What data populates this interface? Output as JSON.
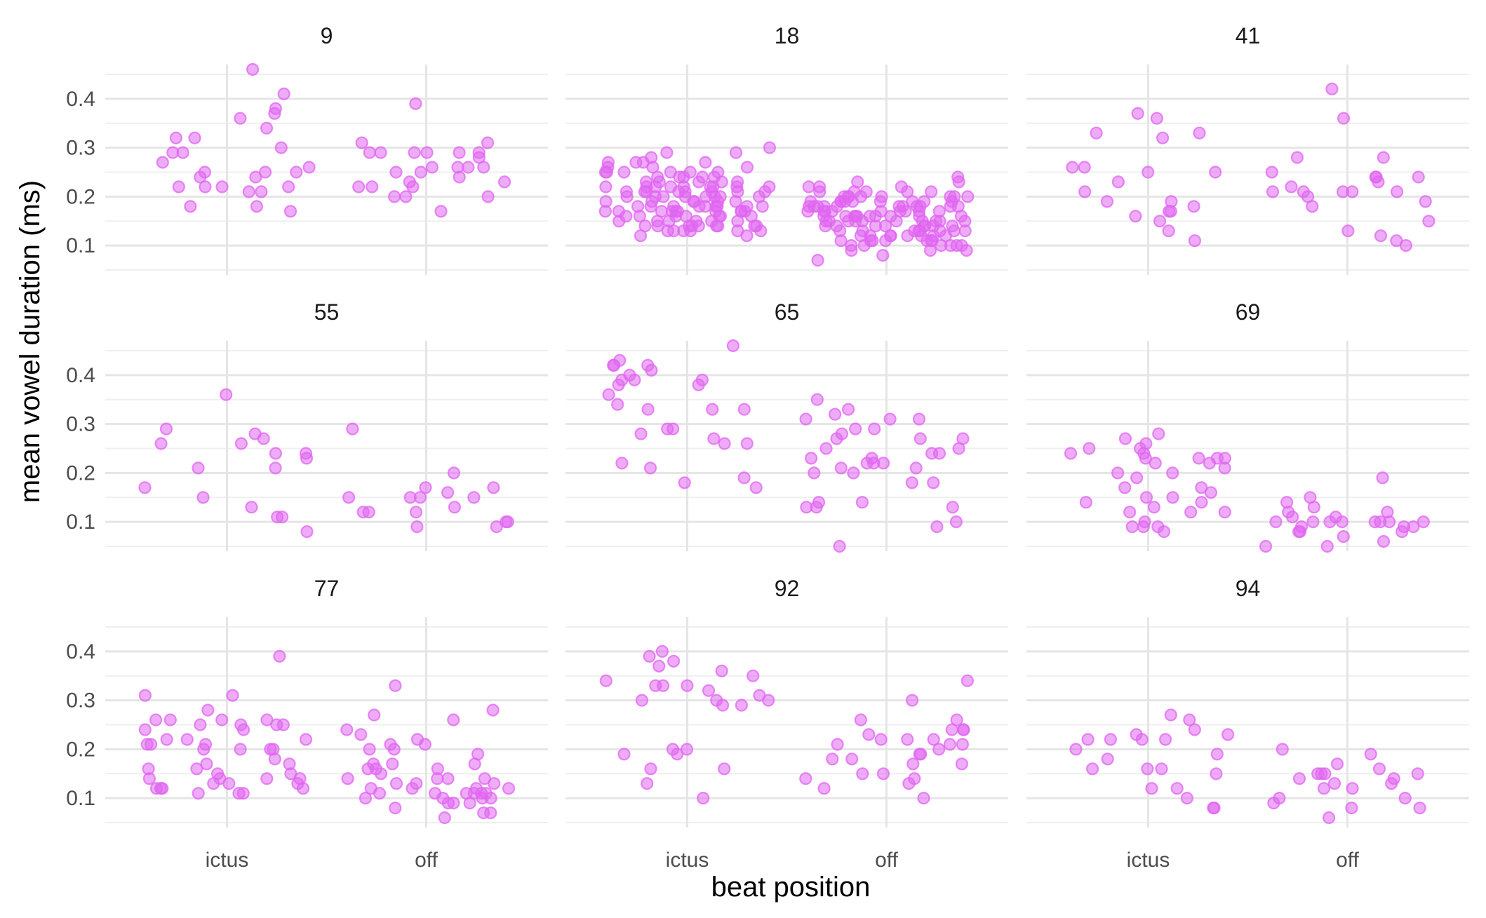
{
  "chart_data": {
    "type": "scatter",
    "facet_type": "facet_wrap",
    "xlabel": "beat position",
    "ylabel": "mean vowel duration (ms)",
    "x_categories": [
      "ictus",
      "off"
    ],
    "y_ticks": [
      0.1,
      0.2,
      0.3,
      0.4
    ],
    "ylim": [
      0.04,
      0.47
    ],
    "grid": true,
    "point_color": "#E066F0",
    "point_alpha": 0.55,
    "panels": [
      {
        "title": "9",
        "ictus": [
          0.46,
          0.32,
          0.21,
          0.26,
          0.18,
          0.24,
          0.29,
          0.17,
          0.21,
          0.3,
          0.34,
          0.24,
          0.38,
          0.32,
          0.36,
          0.29,
          0.22,
          0.37,
          0.22,
          0.41,
          0.27,
          0.22,
          0.25,
          0.25,
          0.18,
          0.22,
          0.25
        ],
        "off": [
          0.31,
          0.22,
          0.29,
          0.28,
          0.22,
          0.29,
          0.25,
          0.2,
          0.29,
          0.23,
          0.25,
          0.26,
          0.29,
          0.39,
          0.2,
          0.29,
          0.2,
          0.26,
          0.26,
          0.24,
          0.31,
          0.17,
          0.22,
          0.26,
          0.23,
          0.29
        ]
      },
      {
        "title": "18",
        "ictus": [
          0.21,
          0.13,
          0.22,
          0.13,
          0.13,
          0.17,
          0.27,
          0.23,
          0.21,
          0.2,
          0.17,
          0.19,
          0.18,
          0.18,
          0.12,
          0.23,
          0.22,
          0.19,
          0.17,
          0.2,
          0.2,
          0.26,
          0.15,
          0.21,
          0.14,
          0.24,
          0.26,
          0.21,
          0.18,
          0.18,
          0.13,
          0.14,
          0.27,
          0.25,
          0.22,
          0.21,
          0.25,
          0.15,
          0.14,
          0.28,
          0.19,
          0.22,
          0.16,
          0.27,
          0.14,
          0.18,
          0.26,
          0.18,
          0.16,
          0.17,
          0.2,
          0.15,
          0.21,
          0.24,
          0.13,
          0.22,
          0.18,
          0.27,
          0.21,
          0.17,
          0.16,
          0.19,
          0.14,
          0.23,
          0.17,
          0.29,
          0.3,
          0.24,
          0.12,
          0.2,
          0.25,
          0.22,
          0.14,
          0.15,
          0.25,
          0.17,
          0.2,
          0.22,
          0.14,
          0.18,
          0.16,
          0.23,
          0.16,
          0.14,
          0.17,
          0.24,
          0.19,
          0.2,
          0.29,
          0.14,
          0.23,
          0.25,
          0.19,
          0.21,
          0.16,
          0.25,
          0.17,
          0.22,
          0.15,
          0.13,
          0.24,
          0.2,
          0.16,
          0.17,
          0.22,
          0.18,
          0.15
        ],
        "off": [
          0.21,
          0.14,
          0.16,
          0.18,
          0.21,
          0.12,
          0.13,
          0.15,
          0.13,
          0.2,
          0.1,
          0.16,
          0.22,
          0.18,
          0.13,
          0.09,
          0.11,
          0.19,
          0.17,
          0.15,
          0.16,
          0.14,
          0.21,
          0.17,
          0.1,
          0.12,
          0.19,
          0.16,
          0.13,
          0.18,
          0.2,
          0.15,
          0.11,
          0.22,
          0.17,
          0.14,
          0.19,
          0.1,
          0.16,
          0.12,
          0.18,
          0.2,
          0.14,
          0.16,
          0.22,
          0.15,
          0.18,
          0.24,
          0.17,
          0.12,
          0.2,
          0.15,
          0.19,
          0.11,
          0.16,
          0.23,
          0.13,
          0.18,
          0.11,
          0.21,
          0.17,
          0.14,
          0.19,
          0.1,
          0.15,
          0.2,
          0.12,
          0.17,
          0.13,
          0.19,
          0.16,
          0.14,
          0.18,
          0.21,
          0.15,
          0.07,
          0.2,
          0.11,
          0.17,
          0.19,
          0.09,
          0.15,
          0.14,
          0.16,
          0.12,
          0.1,
          0.18,
          0.17,
          0.19,
          0.13,
          0.15,
          0.2,
          0.16,
          0.12,
          0.11,
          0.17,
          0.18,
          0.14,
          0.1,
          0.13,
          0.09,
          0.19,
          0.15,
          0.18,
          0.2,
          0.12,
          0.08,
          0.11,
          0.18,
          0.23
        ]
      },
      {
        "title": "41",
        "ictus": [
          0.17,
          0.25,
          0.33,
          0.26,
          0.19,
          0.11,
          0.25,
          0.17,
          0.15,
          0.26,
          0.33,
          0.37,
          0.19,
          0.13,
          0.23,
          0.21,
          0.32,
          0.36,
          0.18,
          0.16
        ],
        "off": [
          0.25,
          0.15,
          0.11,
          0.21,
          0.21,
          0.28,
          0.24,
          0.24,
          0.42,
          0.21,
          0.19,
          0.24,
          0.36,
          0.23,
          0.21,
          0.13,
          0.12,
          0.28,
          0.18,
          0.2,
          0.21,
          0.22,
          0.1
        ]
      },
      {
        "title": "55",
        "ictus": [
          0.36,
          0.21,
          0.17,
          0.26,
          0.23,
          0.11,
          0.26,
          0.24,
          0.21,
          0.27,
          0.11,
          0.08,
          0.13,
          0.28,
          0.29,
          0.24,
          0.15
        ],
        "off": [
          0.2,
          0.17,
          0.17,
          0.15,
          0.15,
          0.13,
          0.12,
          0.12,
          0.1,
          0.15,
          0.09,
          0.29,
          0.09,
          0.12,
          0.16,
          0.1,
          0.15
        ]
      },
      {
        "title": "65",
        "ictus": [
          0.46,
          0.29,
          0.28,
          0.26,
          0.42,
          0.36,
          0.19,
          0.29,
          0.26,
          0.33,
          0.33,
          0.4,
          0.38,
          0.39,
          0.38,
          0.27,
          0.34,
          0.21,
          0.42,
          0.43,
          0.39,
          0.22,
          0.41,
          0.33,
          0.39,
          0.18,
          0.17,
          0.42
        ],
        "off": [
          0.27,
          0.21,
          0.23,
          0.31,
          0.25,
          0.27,
          0.31,
          0.24,
          0.18,
          0.05,
          0.22,
          0.28,
          0.24,
          0.13,
          0.33,
          0.29,
          0.22,
          0.22,
          0.29,
          0.13,
          0.23,
          0.13,
          0.35,
          0.31,
          0.25,
          0.09,
          0.32,
          0.2,
          0.21,
          0.1,
          0.18,
          0.14,
          0.27,
          0.2,
          0.14
        ]
      },
      {
        "title": "69",
        "ictus": [
          0.17,
          0.15,
          0.15,
          0.25,
          0.24,
          0.2,
          0.13,
          0.24,
          0.28,
          0.16,
          0.12,
          0.22,
          0.27,
          0.1,
          0.25,
          0.22,
          0.2,
          0.09,
          0.23,
          0.23,
          0.09,
          0.17,
          0.12,
          0.26,
          0.12,
          0.19,
          0.14,
          0.09,
          0.23,
          0.23,
          0.21,
          0.14,
          0.08
        ],
        "off": [
          0.19,
          0.1,
          0.1,
          0.14,
          0.09,
          0.15,
          0.1,
          0.12,
          0.08,
          0.11,
          0.05,
          0.1,
          0.13,
          0.09,
          0.08,
          0.1,
          0.05,
          0.09,
          0.11,
          0.08,
          0.1,
          0.06,
          0.07,
          0.12,
          0.1,
          0.1
        ]
      },
      {
        "title": "77",
        "ictus": [
          0.13,
          0.2,
          0.16,
          0.14,
          0.12,
          0.24,
          0.22,
          0.15,
          0.14,
          0.12,
          0.13,
          0.25,
          0.39,
          0.14,
          0.26,
          0.2,
          0.21,
          0.14,
          0.26,
          0.31,
          0.17,
          0.28,
          0.12,
          0.21,
          0.26,
          0.11,
          0.18,
          0.31,
          0.24,
          0.25,
          0.21,
          0.11,
          0.16,
          0.2,
          0.25,
          0.26,
          0.22,
          0.11,
          0.22,
          0.25,
          0.15,
          0.13,
          0.17,
          0.12,
          0.2
        ],
        "off": [
          0.22,
          0.13,
          0.2,
          0.17,
          0.13,
          0.33,
          0.1,
          0.27,
          0.14,
          0.21,
          0.11,
          0.14,
          0.13,
          0.08,
          0.07,
          0.15,
          0.17,
          0.14,
          0.12,
          0.11,
          0.09,
          0.1,
          0.16,
          0.19,
          0.23,
          0.26,
          0.11,
          0.1,
          0.16,
          0.12,
          0.07,
          0.06,
          0.11,
          0.11,
          0.21,
          0.28,
          0.09,
          0.14,
          0.11,
          0.24,
          0.1,
          0.12,
          0.09,
          0.17,
          0.12,
          0.2,
          0.16
        ]
      },
      {
        "title": "92",
        "ictus": [
          0.4,
          0.35,
          0.33,
          0.36,
          0.3,
          0.16,
          0.32,
          0.1,
          0.38,
          0.19,
          0.2,
          0.39,
          0.13,
          0.31,
          0.16,
          0.37,
          0.19,
          0.3,
          0.29,
          0.33,
          0.29,
          0.34,
          0.33,
          0.2,
          0.3
        ],
        "off": [
          0.24,
          0.2,
          0.18,
          0.14,
          0.22,
          0.15,
          0.34,
          0.24,
          0.26,
          0.14,
          0.21,
          0.12,
          0.17,
          0.22,
          0.21,
          0.3,
          0.15,
          0.18,
          0.24,
          0.13,
          0.19,
          0.1,
          0.21,
          0.26,
          0.19,
          0.17,
          0.22,
          0.23
        ]
      },
      {
        "title": "94",
        "ictus": [
          0.23,
          0.08,
          0.08,
          0.1,
          0.12,
          0.16,
          0.23,
          0.27,
          0.22,
          0.16,
          0.22,
          0.12,
          0.15,
          0.19,
          0.18,
          0.24,
          0.26,
          0.2,
          0.22,
          0.16,
          0.22
        ],
        "off": [
          0.13,
          0.1,
          0.08,
          0.17,
          0.15,
          0.14,
          0.12,
          0.15,
          0.09,
          0.16,
          0.1,
          0.2,
          0.19,
          0.08,
          0.13,
          0.14,
          0.15,
          0.15,
          0.06,
          0.12
        ]
      }
    ]
  }
}
